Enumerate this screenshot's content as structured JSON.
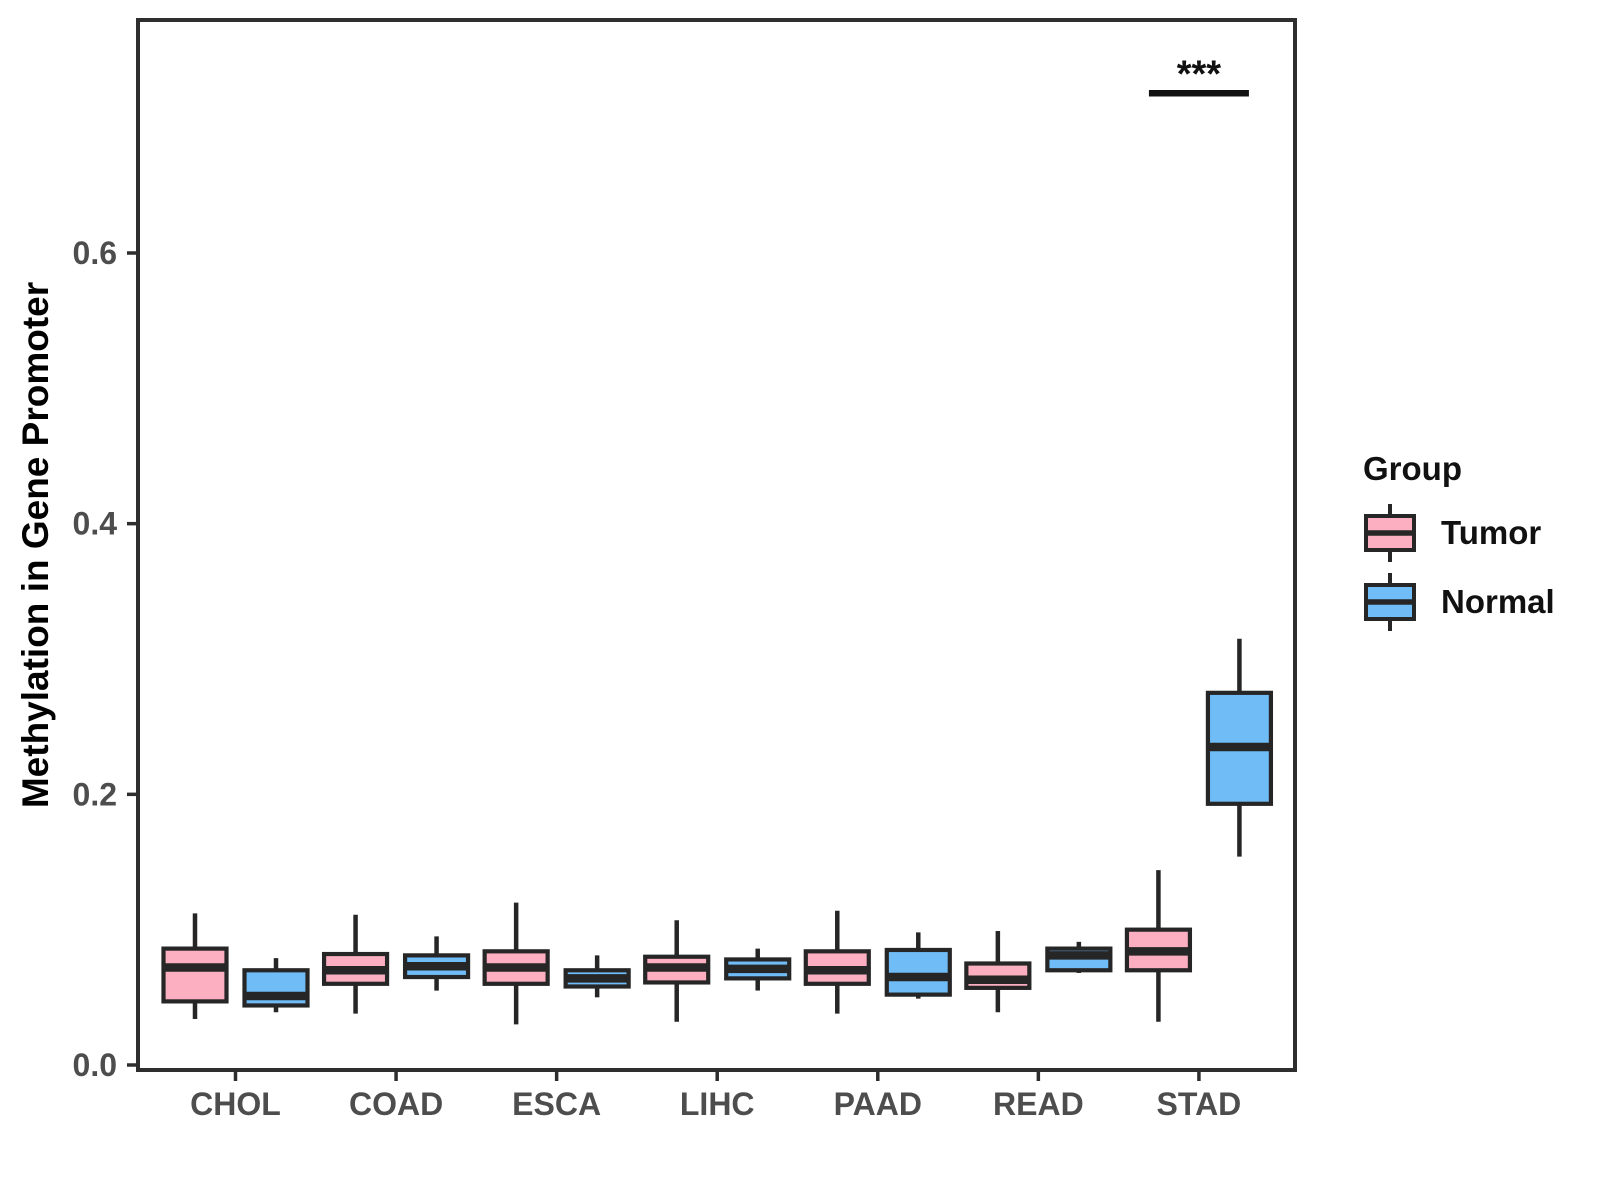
{
  "chart_data": {
    "type": "boxplot",
    "title": "",
    "xlabel": "",
    "ylabel": "Methylation in Gene Promoter",
    "categories": [
      "CHOL",
      "COAD",
      "ESCA",
      "LIHC",
      "PAAD",
      "READ",
      "STAD"
    ],
    "y_ticks": [
      {
        "label": "0.0",
        "value": 0.0
      },
      {
        "label": "0.2",
        "value": 0.2
      },
      {
        "label": "0.4",
        "value": 0.4
      },
      {
        "label": "0.6",
        "value": 0.6
      }
    ],
    "ylim": [
      -0.004,
      0.773
    ],
    "grid": false,
    "legend_position": "right",
    "series": [
      {
        "name": "Tumor",
        "color": "#FBAFC0",
        "boxes": [
          {
            "category": "CHOL",
            "min": 0.034,
            "q1": 0.047,
            "median": 0.072,
            "q3": 0.086,
            "max": 0.112
          },
          {
            "category": "COAD",
            "min": 0.038,
            "q1": 0.06,
            "median": 0.07,
            "q3": 0.082,
            "max": 0.111
          },
          {
            "category": "ESCA",
            "min": 0.03,
            "q1": 0.06,
            "median": 0.072,
            "q3": 0.084,
            "max": 0.12
          },
          {
            "category": "LIHC",
            "min": 0.032,
            "q1": 0.061,
            "median": 0.072,
            "q3": 0.08,
            "max": 0.107
          },
          {
            "category": "PAAD",
            "min": 0.038,
            "q1": 0.06,
            "median": 0.07,
            "q3": 0.084,
            "max": 0.114
          },
          {
            "category": "READ",
            "min": 0.039,
            "q1": 0.057,
            "median": 0.063,
            "q3": 0.075,
            "max": 0.099
          },
          {
            "category": "STAD",
            "min": 0.032,
            "q1": 0.07,
            "median": 0.084,
            "q3": 0.1,
            "max": 0.144
          }
        ]
      },
      {
        "name": "Normal",
        "color": "#6FBCF6",
        "boxes": [
          {
            "category": "CHOL",
            "min": 0.039,
            "q1": 0.044,
            "median": 0.051,
            "q3": 0.07,
            "max": 0.079
          },
          {
            "category": "COAD",
            "min": 0.055,
            "q1": 0.065,
            "median": 0.073,
            "q3": 0.081,
            "max": 0.095
          },
          {
            "category": "ESCA",
            "min": 0.05,
            "q1": 0.058,
            "median": 0.064,
            "q3": 0.07,
            "max": 0.081
          },
          {
            "category": "LIHC",
            "min": 0.055,
            "q1": 0.064,
            "median": 0.071,
            "q3": 0.078,
            "max": 0.086
          },
          {
            "category": "PAAD",
            "min": 0.049,
            "q1": 0.052,
            "median": 0.065,
            "q3": 0.085,
            "max": 0.098
          },
          {
            "category": "READ",
            "min": 0.068,
            "q1": 0.07,
            "median": 0.081,
            "q3": 0.086,
            "max": 0.091
          },
          {
            "category": "STAD",
            "min": 0.154,
            "q1": 0.193,
            "median": 0.235,
            "q3": 0.275,
            "max": 0.315
          }
        ]
      }
    ],
    "annotations": [
      {
        "type": "significance",
        "category": "STAD",
        "label": "***",
        "bar_y": 0.718,
        "label_y": 0.735
      }
    ]
  },
  "legend": {
    "title": "Group",
    "items": [
      {
        "label": "Tumor",
        "color": "#FBAFC0"
      },
      {
        "label": "Normal",
        "color": "#6FBCF6"
      }
    ]
  }
}
